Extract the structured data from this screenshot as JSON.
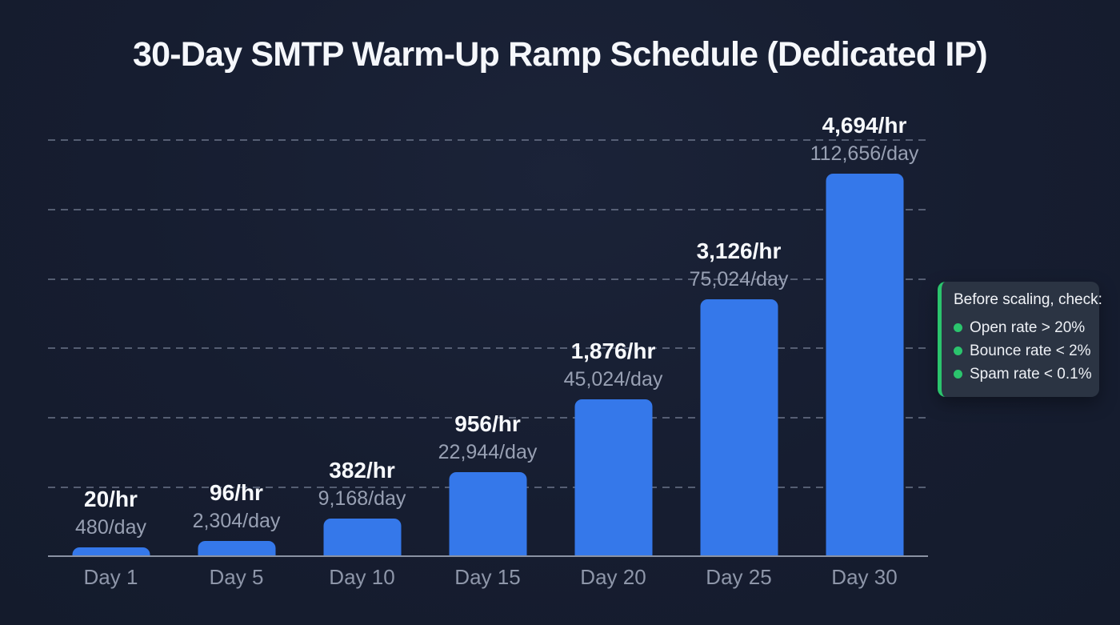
{
  "title": "30-Day SMTP Warm-Up Ramp Schedule (Dedicated IP)",
  "chart_data": {
    "type": "bar",
    "title": "30-Day SMTP Warm-Up Ramp Schedule (Dedicated IP)",
    "categories": [
      "Day 1",
      "Day 5",
      "Day 10",
      "Day 15",
      "Day 20",
      "Day 25",
      "Day 30"
    ],
    "series": [
      {
        "name": "emails_per_hour",
        "values": [
          20,
          96,
          382,
          956,
          1876,
          3126,
          4694
        ]
      },
      {
        "name": "emails_per_day",
        "values": [
          480,
          2304,
          9168,
          22944,
          45024,
          75024,
          112656
        ]
      }
    ],
    "bar_labels_hr": [
      "20/hr",
      "96/hr",
      "382/hr",
      "956/hr",
      "1,876/hr",
      "3,126/hr",
      "4,694/hr"
    ],
    "bar_labels_day": [
      "480/day",
      "2,304/day",
      "9,168/day",
      "22,944/day",
      "45,024/day",
      "75,024/day",
      "112,656/day"
    ],
    "xlabel": "",
    "ylabel": "",
    "ylim": [
      0,
      5200
    ],
    "y_axis_tick_labels_visible": false,
    "gridlines": {
      "orientation": "horizontal",
      "style": "dashed",
      "count": 6
    },
    "legend_position": "none"
  },
  "callout": {
    "title": "Before scaling, check:",
    "items": [
      "Open rate > 20%",
      "Bounce rate < 2%",
      "Spam rate < 0.1%"
    ]
  },
  "colors": {
    "background": "#161d30",
    "bar": "#3578ea",
    "accent_green": "#2bc46d",
    "text_primary": "#f5f7fb",
    "text_muted": "#98a0b3",
    "gridline": "#94a0b4"
  }
}
